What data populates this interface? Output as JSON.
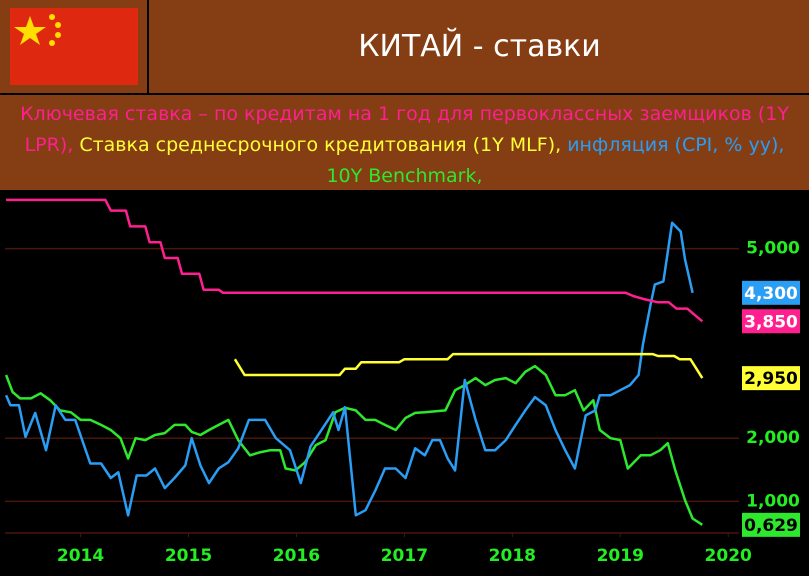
{
  "chart_data": {
    "type": "line",
    "title": "КИТАЙ - ставки",
    "xlim": [
      2013.8,
      2020.6
    ],
    "ylim": [
      0.5,
      5.8
    ],
    "xticks": [
      {
        "value": 2014.5,
        "label": "2014"
      },
      {
        "value": 2015.5,
        "label": "2015"
      },
      {
        "value": 2016.5,
        "label": "2016"
      },
      {
        "value": 2017.5,
        "label": "2017"
      },
      {
        "value": 2018.5,
        "label": "2018"
      },
      {
        "value": 2019.5,
        "label": "2019"
      },
      {
        "value": 2020.5,
        "label": "2020"
      }
    ],
    "yticks": [
      {
        "value": 1,
        "label": "1,000"
      },
      {
        "value": 2,
        "label": "2,000"
      },
      {
        "value": 5,
        "label": "5,000"
      }
    ],
    "grid": true,
    "series": [
      {
        "name": "Ключевая ставка – по кредитам на 1 год для первоклассных заемщиков (1Y LPR),",
        "color": "#ff1f8f",
        "end_label": "3,850",
        "end_text_color": "#ffffff",
        "x": [
          2013.81,
          2014.73,
          2014.78,
          2014.92,
          2014.96,
          2015.1,
          2015.14,
          2015.24,
          2015.28,
          2015.4,
          2015.44,
          2015.6,
          2015.64,
          2015.78,
          2015.82,
          2019.55,
          2019.62,
          2019.72,
          2019.85,
          2019.95,
          2020.02,
          2020.12,
          2020.19,
          2020.26
        ],
        "values": [
          5.77,
          5.77,
          5.6,
          5.6,
          5.35,
          5.35,
          5.1,
          5.1,
          4.85,
          4.85,
          4.6,
          4.6,
          4.35,
          4.35,
          4.3,
          4.3,
          4.25,
          4.2,
          4.15,
          4.15,
          4.05,
          4.05,
          3.95,
          3.85
        ]
      },
      {
        "name": "Ставка среднесрочного кредитования (1Y MLF),",
        "color": "#ffff33",
        "end_label": "2,950",
        "end_text_color": "#000000",
        "x": [
          2015.93,
          2016.02,
          2016.9,
          2016.95,
          2017.05,
          2017.1,
          2017.45,
          2017.5,
          2017.9,
          2017.95,
          2019.8,
          2019.85,
          2020.0,
          2020.05,
          2020.15,
          2020.26
        ],
        "values": [
          3.25,
          3.0,
          3.0,
          3.1,
          3.1,
          3.2,
          3.2,
          3.25,
          3.25,
          3.33,
          3.33,
          3.3,
          3.3,
          3.25,
          3.25,
          2.95
        ]
      },
      {
        "name": "инфляция (CPI, % yy),",
        "color": "#2a9df4",
        "end_label": "4,300",
        "end_text_color": "#ffffff",
        "x": [
          2013.81,
          2013.85,
          2013.93,
          2013.99,
          2014.08,
          2014.18,
          2014.27,
          2014.36,
          2014.45,
          2014.59,
          2014.69,
          2014.78,
          2014.85,
          2014.94,
          2015.02,
          2015.11,
          2015.19,
          2015.28,
          2015.37,
          2015.47,
          2015.53,
          2015.61,
          2015.69,
          2015.78,
          2015.87,
          2015.96,
          2016.06,
          2016.12,
          2016.21,
          2016.31,
          2016.44,
          2016.54,
          2016.63,
          2016.72,
          2016.84,
          2016.89,
          2016.95,
          2017.05,
          2017.14,
          2017.23,
          2017.32,
          2017.42,
          2017.51,
          2017.6,
          2017.69,
          2017.76,
          2017.83,
          2017.9,
          2017.97,
          2018.06,
          2018.16,
          2018.25,
          2018.34,
          2018.44,
          2018.53,
          2018.62,
          2018.71,
          2018.81,
          2018.9,
          2018.99,
          2019.08,
          2019.18,
          2019.27,
          2019.31,
          2019.41,
          2019.5,
          2019.59,
          2019.67,
          2019.71,
          2019.78,
          2019.82,
          2019.9,
          2019.98,
          2020.06,
          2020.1,
          2020.17
        ],
        "values": [
          2.68,
          2.52,
          2.52,
          2.02,
          2.4,
          1.81,
          2.52,
          2.29,
          2.29,
          1.6,
          1.6,
          1.37,
          1.46,
          0.78,
          1.41,
          1.41,
          1.52,
          1.21,
          1.37,
          1.57,
          2.0,
          1.57,
          1.29,
          1.52,
          1.62,
          1.84,
          2.29,
          2.29,
          2.29,
          2.0,
          1.81,
          1.29,
          1.87,
          2.1,
          2.41,
          2.13,
          2.49,
          0.78,
          0.86,
          1.17,
          1.52,
          1.52,
          1.37,
          1.84,
          1.73,
          1.97,
          1.97,
          1.68,
          1.49,
          2.92,
          2.29,
          1.81,
          1.81,
          1.97,
          2.21,
          2.44,
          2.65,
          2.52,
          2.13,
          1.81,
          1.52,
          2.36,
          2.44,
          2.68,
          2.68,
          2.76,
          2.84,
          3.0,
          3.48,
          4.11,
          4.43,
          4.48,
          5.41,
          5.27,
          4.83,
          4.3
        ]
      },
      {
        "name": "10Y Benchmark,",
        "color": "#2ee82e",
        "end_label": "0,629",
        "end_text_color": "#000000",
        "x": [
          2013.81,
          2013.87,
          2013.94,
          2014.04,
          2014.13,
          2014.22,
          2014.31,
          2014.41,
          2014.5,
          2014.59,
          2014.69,
          2014.78,
          2014.87,
          2014.94,
          2015.01,
          2015.1,
          2015.19,
          2015.28,
          2015.37,
          2015.47,
          2015.53,
          2015.61,
          2015.69,
          2015.78,
          2015.87,
          2015.96,
          2016.07,
          2016.17,
          2016.26,
          2016.35,
          2016.4,
          2016.49,
          2016.58,
          2016.68,
          2016.77,
          2016.86,
          2016.95,
          2017.05,
          2017.14,
          2017.23,
          2017.32,
          2017.42,
          2017.51,
          2017.6,
          2017.69,
          2017.88,
          2017.97,
          2018.06,
          2018.16,
          2018.25,
          2018.34,
          2018.44,
          2018.53,
          2018.62,
          2018.71,
          2018.81,
          2018.9,
          2018.99,
          2019.08,
          2019.16,
          2019.25,
          2019.31,
          2019.41,
          2019.5,
          2019.57,
          2019.69,
          2019.78,
          2019.87,
          2019.94,
          2020.01,
          2020.1,
          2020.17,
          2020.26
        ],
        "values": [
          3.0,
          2.73,
          2.63,
          2.63,
          2.71,
          2.6,
          2.44,
          2.41,
          2.29,
          2.29,
          2.21,
          2.13,
          2.0,
          1.68,
          2.0,
          1.97,
          2.05,
          2.08,
          2.21,
          2.21,
          2.1,
          2.05,
          2.13,
          2.21,
          2.29,
          1.97,
          1.73,
          1.78,
          1.81,
          1.81,
          1.52,
          1.49,
          1.62,
          1.89,
          1.97,
          2.41,
          2.48,
          2.44,
          2.29,
          2.29,
          2.21,
          2.13,
          2.32,
          2.4,
          2.41,
          2.44,
          2.76,
          2.84,
          2.95,
          2.84,
          2.92,
          2.95,
          2.87,
          3.05,
          3.14,
          3.0,
          2.68,
          2.68,
          2.76,
          2.44,
          2.6,
          2.13,
          2.0,
          1.97,
          1.52,
          1.73,
          1.73,
          1.81,
          1.92,
          1.49,
          1.02,
          0.73,
          0.629
        ]
      }
    ]
  }
}
